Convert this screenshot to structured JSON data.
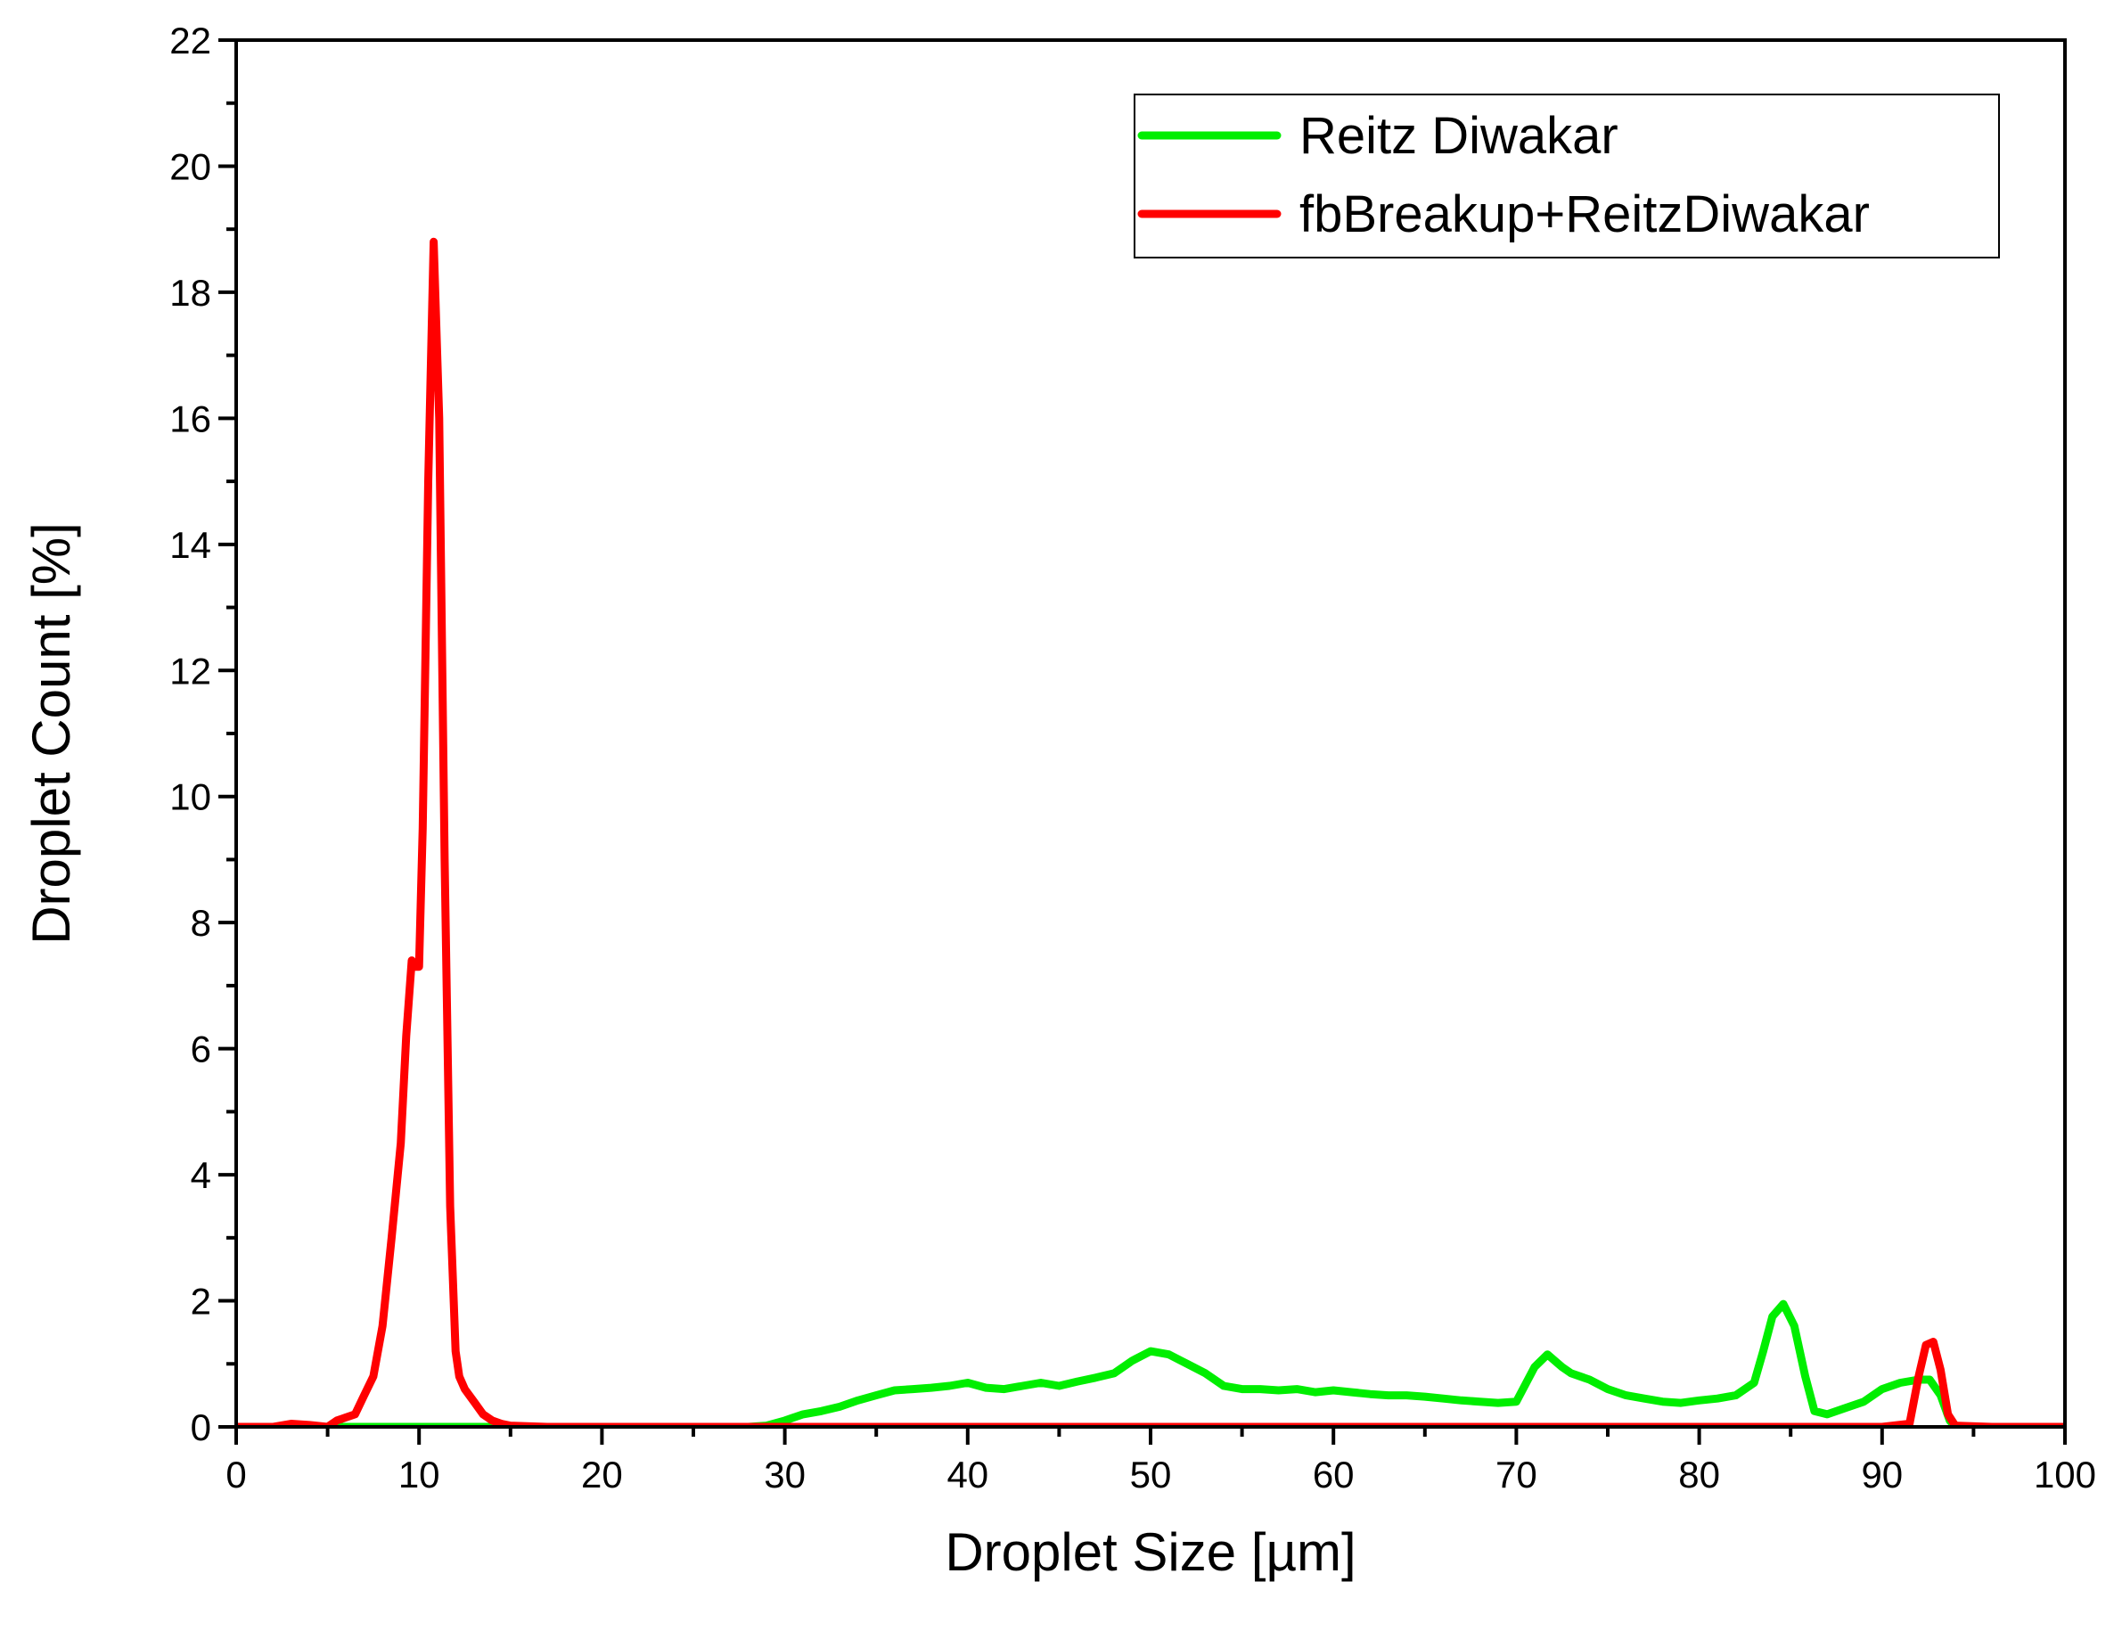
{
  "chart_data": {
    "type": "line",
    "xlabel": "Droplet Size [µm]",
    "ylabel": "Droplet Count [%]",
    "xlim": [
      0,
      100
    ],
    "ylim": [
      0,
      22
    ],
    "x_ticks": [
      "0",
      "10",
      "20",
      "30",
      "40",
      "50",
      "60",
      "70",
      "80",
      "90",
      "100"
    ],
    "y_ticks": [
      "0",
      "2",
      "4",
      "6",
      "8",
      "10",
      "12",
      "14",
      "16",
      "18",
      "20",
      "22"
    ],
    "grid": false,
    "legend_position": "top-right",
    "series": [
      {
        "name": "Reitz Diwakar",
        "color": "#00ee00",
        "x": [
          0,
          10,
          20,
          28,
          29,
          30,
          31,
          32,
          33,
          34,
          35,
          36,
          37,
          38,
          39,
          40,
          41,
          42,
          43,
          44,
          45,
          46,
          47,
          48,
          49,
          50,
          51,
          52,
          53,
          54,
          55,
          56,
          57,
          58,
          59,
          60,
          61,
          62,
          63,
          64,
          65,
          66,
          67,
          68,
          69,
          70,
          71,
          71.7,
          72.5,
          73,
          74,
          75,
          76,
          77,
          78,
          79,
          80,
          81,
          82,
          83,
          83.5,
          84,
          84.6,
          85.2,
          85.8,
          86.3,
          87,
          88,
          89,
          90,
          91,
          92,
          92.6,
          93.2,
          93.7,
          94,
          95,
          100
        ],
        "values": [
          0,
          0,
          0,
          0,
          0.02,
          0.1,
          0.2,
          0.25,
          0.32,
          0.42,
          0.5,
          0.58,
          0.6,
          0.62,
          0.65,
          0.7,
          0.62,
          0.6,
          0.65,
          0.7,
          0.65,
          0.72,
          0.78,
          0.85,
          1.05,
          1.2,
          1.15,
          1.0,
          0.85,
          0.65,
          0.6,
          0.6,
          0.58,
          0.6,
          0.55,
          0.58,
          0.55,
          0.52,
          0.5,
          0.5,
          0.48,
          0.45,
          0.42,
          0.4,
          0.38,
          0.4,
          0.95,
          1.15,
          0.95,
          0.85,
          0.75,
          0.6,
          0.5,
          0.45,
          0.4,
          0.38,
          0.42,
          0.45,
          0.5,
          0.7,
          1.2,
          1.75,
          1.95,
          1.6,
          0.8,
          0.25,
          0.2,
          0.3,
          0.4,
          0.6,
          0.7,
          0.75,
          0.75,
          0.5,
          0.1,
          0,
          0,
          0
        ]
      },
      {
        "name": "fbBreakup+ReitzDiwakar",
        "color": "#ff0000",
        "x": [
          0,
          2,
          3,
          4,
          5,
          5.5,
          6,
          6.5,
          7,
          7.5,
          8,
          8.5,
          9,
          9.3,
          9.6,
          9.8,
          10,
          10.2,
          10.5,
          10.8,
          11.1,
          11.4,
          11.7,
          12,
          12.2,
          12.5,
          13,
          13.5,
          14,
          14.5,
          15,
          17,
          20,
          30,
          50,
          70,
          80,
          90,
          91.5,
          92,
          92.4,
          92.8,
          93.2,
          93.6,
          94,
          96,
          100
        ],
        "values": [
          0,
          0,
          0.05,
          0.03,
          0,
          0.1,
          0.15,
          0.2,
          0.5,
          0.8,
          1.6,
          3.0,
          4.5,
          6.2,
          7.4,
          7.3,
          7.3,
          9.5,
          15.0,
          18.8,
          16.0,
          9.0,
          3.5,
          1.2,
          0.8,
          0.6,
          0.4,
          0.2,
          0.1,
          0.05,
          0.02,
          0,
          0,
          0,
          0,
          0,
          0,
          0,
          0.05,
          0.8,
          1.3,
          1.35,
          0.9,
          0.2,
          0.02,
          0,
          0
        ]
      }
    ]
  }
}
